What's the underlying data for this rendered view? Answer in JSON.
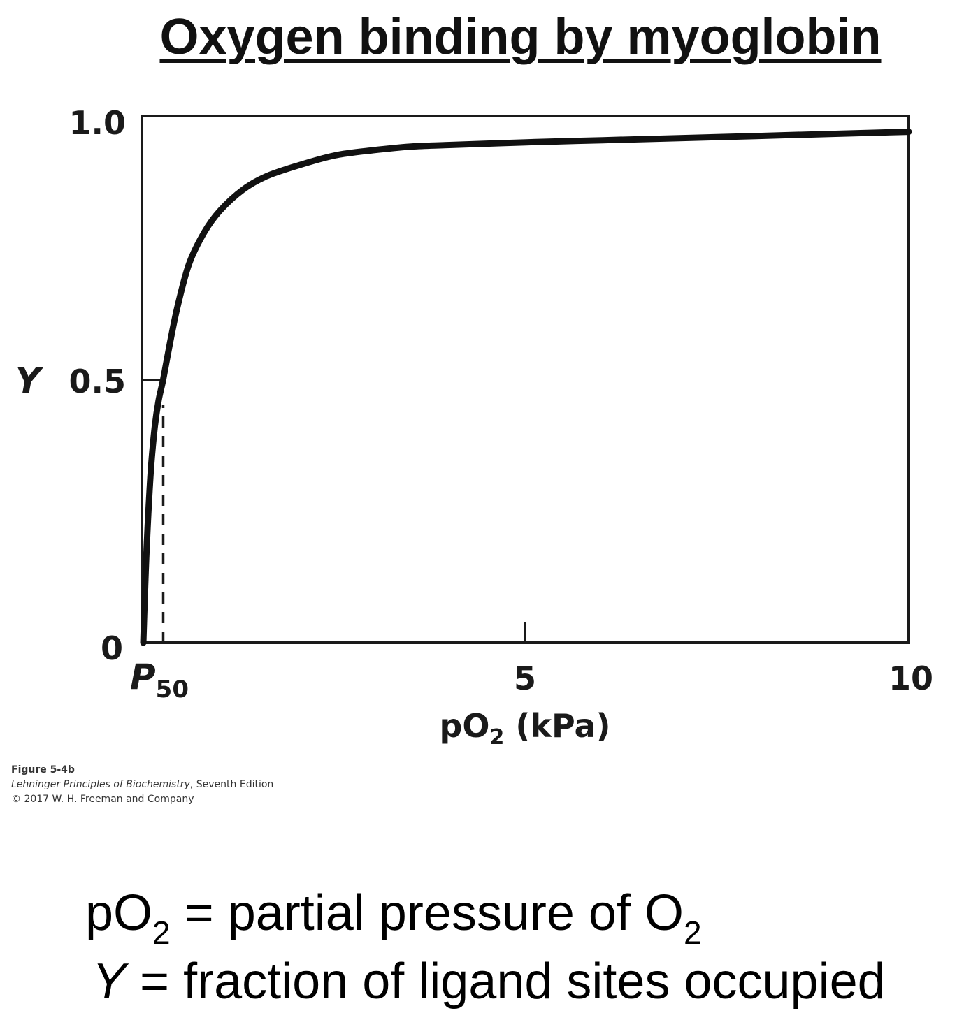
{
  "slide": {
    "title": "Oxygen binding by myoglobin"
  },
  "chart_data": {
    "type": "line",
    "y_symbol": "Y",
    "y_ticks": [
      "0",
      "0.5",
      "1.0"
    ],
    "x_ticks": [
      "5",
      "10"
    ],
    "p50_label": {
      "main": "P",
      "sub": "50"
    },
    "xlabel": {
      "before": "pO",
      "sub": "2",
      "after": " (kPa)"
    },
    "xlim": [
      0,
      10
    ],
    "ylim": [
      0,
      1
    ],
    "p50": 0.26,
    "x": [
      0,
      0.02,
      0.05,
      0.1,
      0.15,
      0.2,
      0.26,
      0.35,
      0.45,
      0.6,
      0.8,
      1.0,
      1.3,
      1.6,
      2.0,
      2.5,
      3.0,
      3.5,
      4.0,
      5.0,
      6.0,
      7.0,
      8.0,
      9.0,
      10.0
    ],
    "values": [
      0,
      0.09,
      0.2,
      0.33,
      0.41,
      0.46,
      0.5,
      0.57,
      0.64,
      0.72,
      0.78,
      0.82,
      0.86,
      0.885,
      0.905,
      0.925,
      0.935,
      0.942,
      0.945,
      0.95,
      0.954,
      0.958,
      0.962,
      0.966,
      0.97
    ]
  },
  "caption": {
    "figure": "Figure 5-4b",
    "book": "Lehninger Principles of Biochemistry",
    "edition": ", Seventh Edition",
    "copyright": "© 2017 W. H. Freeman and Company"
  },
  "notes": {
    "po2": {
      "before": "pO",
      "sub": "2",
      "middle": " = partial pressure of O",
      "sub2": "2"
    },
    "y": {
      "symbol": "Y",
      "text": " = fraction of ligand sites occupied"
    }
  }
}
